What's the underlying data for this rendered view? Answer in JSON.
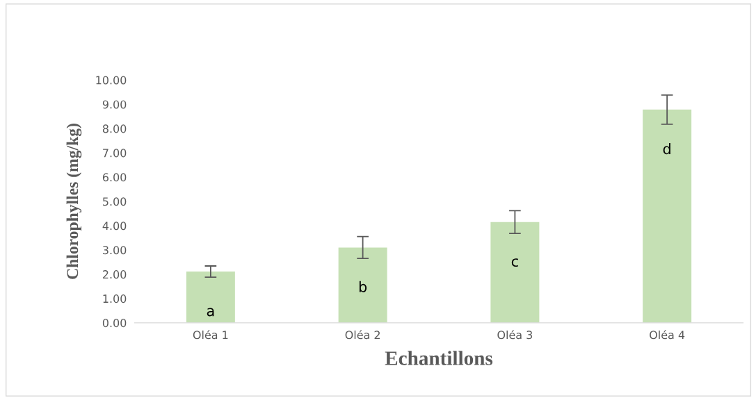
{
  "chart_data": {
    "type": "bar",
    "xlabel": "Echantillons",
    "ylabel": "Chlorophylles (mg/kg)",
    "categories": [
      "Oléa 1",
      "Oléa 2",
      "Oléa 3",
      "Oléa 4"
    ],
    "values": [
      2.11,
      3.1,
      4.15,
      8.78
    ],
    "errors": [
      0.23,
      0.45,
      0.47,
      0.6
    ],
    "color": "#c5e0b4",
    "ylim": [
      0,
      10
    ],
    "yticks": [
      {
        "value": 0,
        "label": "0.00"
      },
      {
        "value": 1,
        "label": "1.00"
      },
      {
        "value": 2,
        "label": "2.00"
      },
      {
        "value": 3,
        "label": "3.00"
      },
      {
        "value": 4,
        "label": "4.00"
      },
      {
        "value": 5,
        "label": "5.00"
      },
      {
        "value": 6,
        "label": "6.00"
      },
      {
        "value": 7,
        "label": "7.00"
      },
      {
        "value": 8,
        "label": "8.00"
      },
      {
        "value": 9,
        "label": "9.00"
      },
      {
        "value": 10,
        "label": "10.00"
      }
    ],
    "grid": false,
    "annotations": [
      "a",
      "b",
      "c",
      "d"
    ]
  }
}
